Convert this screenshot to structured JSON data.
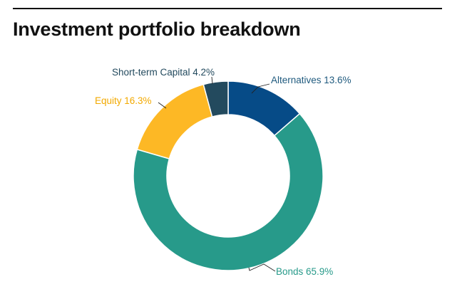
{
  "title": "Investment portfolio breakdown",
  "chart_data": {
    "type": "pie",
    "donut": true,
    "title": "Investment portfolio breakdown",
    "slices": [
      {
        "label": "Alternatives",
        "value": 13.6,
        "display": "Alternatives 13.6%",
        "color": "#064b87"
      },
      {
        "label": "Bonds",
        "value": 65.9,
        "display": "Bonds 65.9%",
        "color": "#279a8a"
      },
      {
        "label": "Equity",
        "value": 16.3,
        "display": "Equity 16.3%",
        "color": "#fdb825"
      },
      {
        "label": "Short-term Capital",
        "value": 4.2,
        "display": "Short-term Capital 4.2%",
        "color": "#234a5e"
      }
    ],
    "start_angle": "12 o'clock",
    "direction": "clockwise"
  }
}
